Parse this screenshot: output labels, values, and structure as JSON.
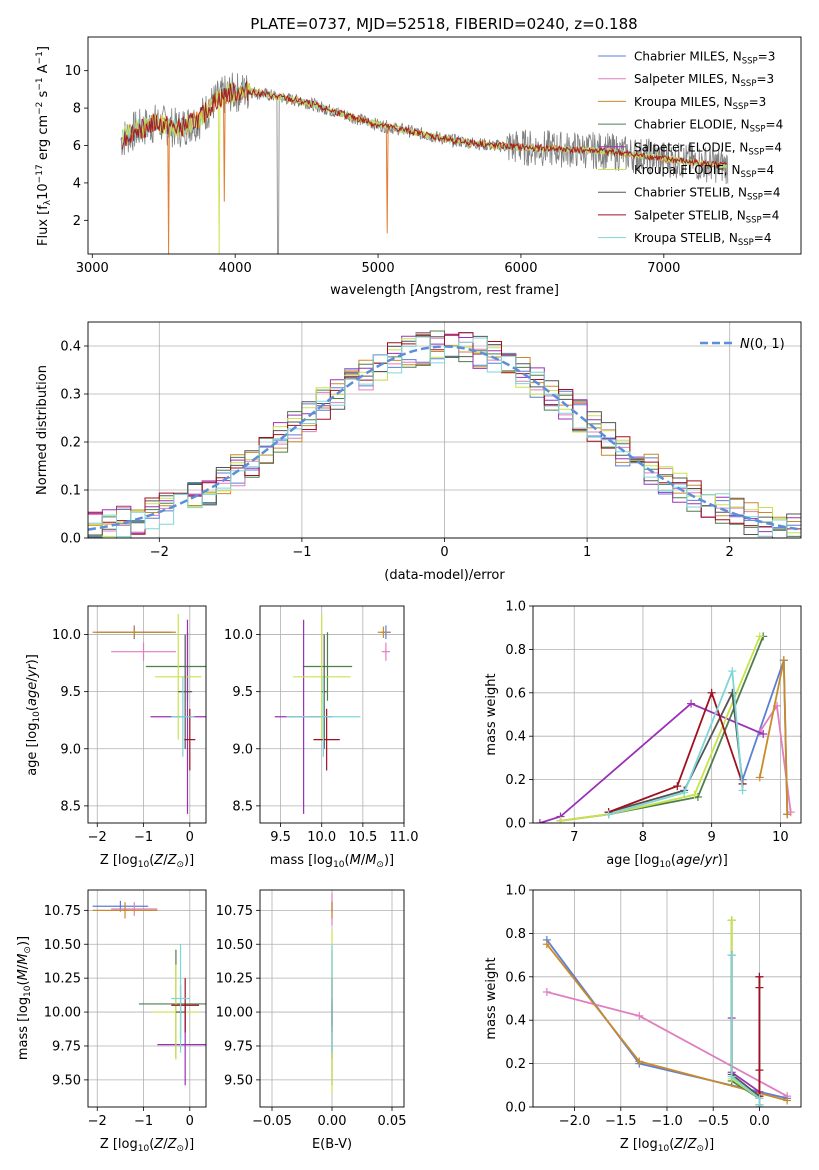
{
  "title": "PLATE=0737, MJD=52518, FIBERID=0240, z=0.188",
  "colors": {
    "Chabrier MILES": "#5b7fd6",
    "Salpeter MILES": "#e07fbf",
    "Kroupa MILES": "#c98a2a",
    "Chabrier ELODIE": "#4d7f4d",
    "Salpeter ELODIE": "#9b30b8",
    "Kroupa ELODIE": "#c9e34a",
    "Chabrier STELIB": "#555555",
    "Salpeter STELIB": "#a01020",
    "Kroupa STELIB": "#7fd6d6",
    "data": "#808080",
    "model_orange": "#e07020",
    "normal": "#5b8fd9"
  },
  "chart_data": [
    {
      "id": "spectrum",
      "type": "line",
      "xlabel": "wavelength [Angstrom, rest frame]",
      "ylabel": "Flux [f_λ 10^-17 erg cm^-2 s^-1 A^-1]",
      "xlim": [
        2970,
        7960
      ],
      "ylim": [
        0.2,
        11.8
      ],
      "xticks": [
        3000,
        4000,
        5000,
        6000,
        7000
      ],
      "yticks": [
        2,
        4,
        6,
        8,
        10
      ],
      "grid": false,
      "legend_position": "upper right",
      "legend": [
        {
          "prefix": "Chabrier MILES, N",
          "sub": "SSP",
          "suffix": "=3"
        },
        {
          "prefix": "Salpeter MILES, N",
          "sub": "SSP",
          "suffix": "=3"
        },
        {
          "prefix": "Kroupa MILES, N",
          "sub": "SSP",
          "suffix": "=3"
        },
        {
          "prefix": "Chabrier ELODIE, N",
          "sub": "SSP",
          "suffix": "=4"
        },
        {
          "prefix": "Salpeter ELODIE, N",
          "sub": "SSP",
          "suffix": "=4"
        },
        {
          "prefix": "Kroupa ELODIE, N",
          "sub": "SSP",
          "suffix": "=4"
        },
        {
          "prefix": "Chabrier STELIB, N",
          "sub": "SSP",
          "suffix": "=4"
        },
        {
          "prefix": "Salpeter STELIB, N",
          "sub": "SSP",
          "suffix": "=4"
        },
        {
          "prefix": "Kroupa STELIB, N",
          "sub": "SSP",
          "suffix": "=4"
        }
      ],
      "continuum": [
        [
          3200,
          6.3
        ],
        [
          3300,
          6.8
        ],
        [
          3450,
          7.2
        ],
        [
          3600,
          6.9
        ],
        [
          3750,
          7.4
        ],
        [
          3850,
          8.3
        ],
        [
          3950,
          8.8
        ],
        [
          4100,
          8.9
        ],
        [
          4300,
          8.6
        ],
        [
          4500,
          8.3
        ],
        [
          4700,
          7.8
        ],
        [
          5000,
          7.1
        ],
        [
          5200,
          6.8
        ],
        [
          5500,
          6.3
        ],
        [
          5800,
          6.0
        ],
        [
          6000,
          5.9
        ],
        [
          6300,
          5.8
        ],
        [
          6600,
          5.7
        ],
        [
          6900,
          5.4
        ],
        [
          7200,
          5.1
        ],
        [
          7450,
          4.9
        ]
      ]
    },
    {
      "id": "residuals",
      "type": "line",
      "xlabel": "(data-model)/error",
      "ylabel": "Normed distribution",
      "xlim": [
        -2.5,
        2.5
      ],
      "ylim": [
        0,
        0.45
      ],
      "xticks": [
        -2,
        -1,
        0,
        1,
        2
      ],
      "yticks": [
        0.0,
        0.1,
        0.2,
        0.3,
        0.4
      ],
      "grid": true,
      "legend": "N(0,1)",
      "legend_position": "upper right",
      "bin_width": 0.1
    },
    {
      "id": "age_vs_Z",
      "type": "scatter",
      "xlabel": "Z [log10(Z/Z⊙)]",
      "ylabel": "age [log10(age/yr)]",
      "xlim": [
        -2.2,
        0.35
      ],
      "ylim": [
        8.35,
        10.25
      ],
      "xticks": [
        -2,
        -1,
        0
      ],
      "yticks": [
        8.5,
        9.0,
        9.5,
        10.0
      ],
      "grid": true,
      "points": [
        {
          "model": "Chabrier MILES",
          "x": -1.2,
          "y": 10.02,
          "xerr": 0.8,
          "yerr": 0.06
        },
        {
          "model": "Salpeter MILES",
          "x": -1.0,
          "y": 9.85,
          "xerr": 0.7,
          "yerr": 0.08
        },
        {
          "model": "Kroupa MILES",
          "x": -1.2,
          "y": 10.02,
          "xerr": 0.9,
          "yerr": 0.05
        },
        {
          "model": "Chabrier ELODIE",
          "x": -0.05,
          "y": 9.72,
          "xerr": 0.9,
          "yerr": 0.3
        },
        {
          "model": "Salpeter ELODIE",
          "x": -0.05,
          "y": 9.28,
          "xerr": 0.8,
          "yerr": 0.85
        },
        {
          "model": "Kroupa ELODIE",
          "x": -0.25,
          "y": 9.63,
          "xerr": 0.5,
          "yerr": 0.55
        },
        {
          "model": "Chabrier STELIB",
          "x": -0.1,
          "y": 9.5,
          "xerr": 0.15,
          "yerr": 0.5
        },
        {
          "model": "Salpeter STELIB",
          "x": 0.0,
          "y": 9.08,
          "xerr": 0.12,
          "yerr": 0.27
        },
        {
          "model": "Kroupa STELIB",
          "x": -0.15,
          "y": 9.28,
          "xerr": 0.25,
          "yerr": 0.35
        }
      ]
    },
    {
      "id": "age_vs_mass",
      "type": "scatter",
      "xlabel": "mass [log10(M/M⊙)]",
      "xlim": [
        9.25,
        11.0
      ],
      "ylim": [
        8.35,
        10.25
      ],
      "xticks": [
        9.5,
        10.0,
        10.5,
        11.0
      ],
      "yticks": [
        8.5,
        9.0,
        9.5,
        10.0
      ],
      "grid": true,
      "points": [
        {
          "model": "Chabrier MILES",
          "x": 10.78,
          "y": 10.02,
          "xerr": 0.06,
          "yerr": 0.06
        },
        {
          "model": "Salpeter MILES",
          "x": 10.78,
          "y": 9.85,
          "xerr": 0.05,
          "yerr": 0.08
        },
        {
          "model": "Kroupa MILES",
          "x": 10.75,
          "y": 10.02,
          "xerr": 0.07,
          "yerr": 0.05
        },
        {
          "model": "Chabrier ELODIE",
          "x": 10.07,
          "y": 9.72,
          "xerr": 0.3,
          "yerr": 0.3
        },
        {
          "model": "Salpeter ELODIE",
          "x": 9.78,
          "y": 9.28,
          "xerr": 0.35,
          "yerr": 0.85
        },
        {
          "model": "Kroupa ELODIE",
          "x": 10.0,
          "y": 9.63,
          "xerr": 0.35,
          "yerr": 0.55
        },
        {
          "model": "Chabrier STELIB",
          "x": 10.03,
          "y": 9.5,
          "xerr": 0.03,
          "yerr": 0.5
        },
        {
          "model": "Salpeter STELIB",
          "x": 10.06,
          "y": 9.08,
          "xerr": 0.16,
          "yerr": 0.27
        },
        {
          "model": "Kroupa STELIB",
          "x": 10.02,
          "y": 9.28,
          "xerr": 0.45,
          "yerr": 0.35
        }
      ]
    },
    {
      "id": "weight_vs_age",
      "type": "line",
      "xlabel": "age [log10(age/yr)]",
      "ylabel": "mass weight",
      "xlim": [
        6.4,
        10.3
      ],
      "ylim": [
        0,
        1.0
      ],
      "xticks": [
        7,
        8,
        9,
        10
      ],
      "yticks": [
        0.0,
        0.2,
        0.4,
        0.6,
        0.8,
        1.0
      ],
      "grid": true,
      "series": [
        {
          "model": "Chabrier MILES",
          "x": [
            9.45,
            10.05,
            10.1
          ],
          "y": [
            0.2,
            0.75,
            0.04
          ]
        },
        {
          "model": "Salpeter MILES",
          "x": [
            9.7,
            9.95,
            10.15
          ],
          "y": [
            0.42,
            0.54,
            0.05
          ]
        },
        {
          "model": "Kroupa MILES",
          "x": [
            9.7,
            10.05,
            10.1
          ],
          "y": [
            0.21,
            0.75,
            0.04
          ]
        },
        {
          "model": "Chabrier ELODIE",
          "x": [
            6.8,
            7.5,
            8.8,
            9.75
          ],
          "y": [
            0.01,
            0.04,
            0.12,
            0.86
          ]
        },
        {
          "model": "Salpeter ELODIE",
          "x": [
            6.5,
            6.8,
            8.7,
            9.75
          ],
          "y": [
            0.0,
            0.03,
            0.55,
            0.41
          ]
        },
        {
          "model": "Kroupa ELODIE",
          "x": [
            6.8,
            7.5,
            8.75,
            9.7
          ],
          "y": [
            0.01,
            0.04,
            0.13,
            0.86
          ]
        },
        {
          "model": "Chabrier STELIB",
          "x": [
            7.5,
            8.6,
            9.3,
            9.45
          ],
          "y": [
            0.05,
            0.15,
            0.6,
            0.18
          ]
        },
        {
          "model": "Salpeter STELIB",
          "x": [
            7.5,
            8.5,
            9.0,
            9.45
          ],
          "y": [
            0.05,
            0.17,
            0.6,
            0.18
          ]
        },
        {
          "model": "Kroupa STELIB",
          "x": [
            7.5,
            8.6,
            9.3,
            9.45
          ],
          "y": [
            0.04,
            0.14,
            0.7,
            0.15
          ]
        }
      ]
    },
    {
      "id": "mass_vs_Z",
      "type": "scatter",
      "xlabel": "Z [log10(Z/Z⊙)]",
      "ylabel": "mass [log10(M/M⊙)]",
      "xlim": [
        -2.2,
        0.35
      ],
      "ylim": [
        9.3,
        10.9
      ],
      "xticks": [
        -2,
        -1,
        0
      ],
      "yticks": [
        9.5,
        9.75,
        10.0,
        10.25,
        10.5,
        10.75
      ],
      "grid": true,
      "points": [
        {
          "model": "Chabrier MILES",
          "x": -1.5,
          "y": 10.78,
          "xerr": 0.6,
          "yerr": 0.04
        },
        {
          "model": "Salpeter MILES",
          "x": -1.2,
          "y": 10.76,
          "xerr": 0.5,
          "yerr": 0.05
        },
        {
          "model": "Kroupa MILES",
          "x": -1.4,
          "y": 10.75,
          "xerr": 0.7,
          "yerr": 0.06
        },
        {
          "model": "Chabrier ELODIE",
          "x": -0.3,
          "y": 10.06,
          "xerr": 0.8,
          "yerr": 0.4
        },
        {
          "model": "Salpeter ELODIE",
          "x": -0.1,
          "y": 9.76,
          "xerr": 0.6,
          "yerr": 0.3
        },
        {
          "model": "Kroupa ELODIE",
          "x": -0.3,
          "y": 10.0,
          "xerr": 0.5,
          "yerr": 0.35
        },
        {
          "model": "Chabrier STELIB",
          "x": -0.2,
          "y": 10.0,
          "xerr": 0.1,
          "yerr": 0.2
        },
        {
          "model": "Salpeter STELIB",
          "x": -0.1,
          "y": 10.05,
          "xerr": 0.3,
          "yerr": 0.2
        },
        {
          "model": "Kroupa STELIB",
          "x": -0.2,
          "y": 10.1,
          "xerr": 0.2,
          "yerr": 0.4
        }
      ]
    },
    {
      "id": "mass_vs_ebv",
      "type": "scatter",
      "xlabel": "E(B-V)",
      "xlim": [
        -0.06,
        0.06
      ],
      "ylim": [
        9.3,
        10.9
      ],
      "xticks": [
        -0.05,
        0.0,
        0.05
      ],
      "yticks": [
        9.5,
        9.75,
        10.0,
        10.25,
        10.5,
        10.75
      ],
      "grid": true,
      "points": [
        {
          "model": "Chabrier MILES",
          "x": 0.0,
          "y": 10.78,
          "yerr": 0.04
        },
        {
          "model": "Salpeter MILES",
          "x": 0.0,
          "y": 10.76,
          "yerr": 0.12
        },
        {
          "model": "Kroupa MILES",
          "x": 0.0,
          "y": 10.75,
          "yerr": 0.06
        },
        {
          "model": "Chabrier ELODIE",
          "x": 0.0,
          "y": 10.06,
          "yerr": 0.4
        },
        {
          "model": "Salpeter ELODIE",
          "x": 0.0,
          "y": 9.76,
          "yerr": 0.3
        },
        {
          "model": "Kroupa ELODIE",
          "x": 0.0,
          "y": 10.0,
          "yerr": 0.6
        },
        {
          "model": "Chabrier STELIB",
          "x": 0.0,
          "y": 10.0,
          "yerr": 0.1
        },
        {
          "model": "Salpeter STELIB",
          "x": 0.0,
          "y": 10.05,
          "yerr": 0.2
        },
        {
          "model": "Kroupa STELIB",
          "x": 0.0,
          "y": 10.1,
          "yerr": 0.4
        }
      ]
    },
    {
      "id": "weight_vs_Z",
      "type": "line",
      "xlabel": "Z [log10(Z/Z⊙)]",
      "ylabel": "mass weight",
      "xlim": [
        -2.45,
        0.45
      ],
      "ylim": [
        0,
        1.0
      ],
      "xticks": [
        -2.0,
        -1.5,
        -1.0,
        -0.5,
        0.0
      ],
      "yticks": [
        0.0,
        0.2,
        0.4,
        0.6,
        0.8,
        1.0
      ],
      "grid": true,
      "series": [
        {
          "model": "Chabrier MILES",
          "x": [
            -2.3,
            -1.3,
            0.3
          ],
          "y": [
            0.77,
            0.2,
            0.04
          ]
        },
        {
          "model": "Salpeter MILES",
          "x": [
            -2.3,
            -1.3,
            0.3
          ],
          "y": [
            0.53,
            0.42,
            0.05
          ]
        },
        {
          "model": "Kroupa MILES",
          "x": [
            -2.3,
            -1.3,
            0.3
          ],
          "y": [
            0.75,
            0.21,
            0.03
          ]
        },
        {
          "model": "Chabrier ELODIE",
          "x": [
            -0.3,
            -0.3,
            0.0,
            0.0
          ],
          "y": [
            0.86,
            0.12,
            0.04,
            0.01
          ]
        },
        {
          "model": "Salpeter ELODIE",
          "x": [
            -0.3,
            -0.3,
            0.0,
            0.0
          ],
          "y": [
            0.41,
            0.16,
            0.07,
            0.0
          ]
        },
        {
          "model": "Kroupa ELODIE",
          "x": [
            -0.3,
            -0.3,
            0.0,
            0.0
          ],
          "y": [
            0.86,
            0.13,
            0.04,
            0.01
          ]
        },
        {
          "model": "Chabrier STELIB",
          "x": [
            -0.3,
            -0.3,
            0.0,
            0.0
          ],
          "y": [
            0.7,
            0.15,
            0.05,
            0.6
          ]
        },
        {
          "model": "Salpeter STELIB",
          "x": [
            0.0,
            0.0,
            0.0,
            0.0
          ],
          "y": [
            0.6,
            0.55,
            0.17,
            0.05
          ]
        },
        {
          "model": "Kroupa STELIB",
          "x": [
            -0.3,
            -0.3,
            0.0,
            0.0
          ],
          "y": [
            0.7,
            0.14,
            0.04,
            0.01
          ]
        }
      ]
    }
  ]
}
